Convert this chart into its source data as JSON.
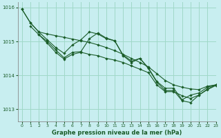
{
  "xlabel": "Graphe pression niveau de la mer (hPa)",
  "background_color": "#c8eef0",
  "grid_color": "#a0d8c8",
  "line_color": "#1a5c28",
  "xlim": [
    -0.5,
    23
  ],
  "ylim": [
    1012.65,
    1016.15
  ],
  "yticks": [
    1013,
    1014,
    1015,
    1016
  ],
  "xticks": [
    0,
    1,
    2,
    3,
    4,
    5,
    6,
    7,
    8,
    9,
    10,
    11,
    12,
    13,
    14,
    15,
    16,
    17,
    18,
    19,
    20,
    21,
    22,
    23
  ],
  "line1_x": [
    0,
    1,
    2,
    3,
    4,
    5,
    6,
    7,
    8,
    9,
    10,
    11,
    12,
    13,
    14,
    15,
    16,
    17,
    18,
    19,
    20,
    21,
    22,
    23
  ],
  "line1_y": [
    1015.95,
    1015.55,
    1015.28,
    1015.22,
    1015.17,
    1015.12,
    1015.07,
    1015.02,
    1014.97,
    1014.9,
    1014.82,
    1014.73,
    1014.62,
    1014.5,
    1014.38,
    1014.25,
    1014.05,
    1013.85,
    1013.72,
    1013.65,
    1013.6,
    1013.58,
    1013.68,
    1013.72
  ],
  "line2_x": [
    0,
    1,
    2,
    3,
    4,
    5,
    6,
    7,
    8,
    9,
    10,
    11,
    12,
    13,
    14,
    15,
    16,
    17,
    18,
    19,
    20,
    21,
    22,
    23
  ],
  "line2_y": [
    1015.95,
    1015.55,
    1015.28,
    1015.05,
    1014.82,
    1014.65,
    1014.9,
    1015.05,
    1015.28,
    1015.22,
    1015.08,
    1015.02,
    1014.6,
    1014.42,
    1014.5,
    1014.22,
    1013.82,
    1013.62,
    1013.62,
    1013.28,
    1013.42,
    1013.48,
    1013.65,
    1013.72
  ],
  "line3_x": [
    1,
    2,
    3,
    4,
    5,
    6,
    7,
    8,
    9,
    10,
    11,
    12,
    13,
    14,
    15,
    16,
    17,
    18,
    19,
    20,
    21,
    22,
    23
  ],
  "line3_y": [
    1015.45,
    1015.2,
    1014.95,
    1014.68,
    1014.48,
    1014.62,
    1014.68,
    1014.62,
    1014.58,
    1014.5,
    1014.45,
    1014.38,
    1014.28,
    1014.18,
    1014.08,
    1013.72,
    1013.52,
    1013.52,
    1013.4,
    1013.32,
    1013.42,
    1013.6,
    1013.72
  ],
  "line4_x": [
    2,
    3,
    4,
    5,
    6,
    7,
    8,
    9,
    10,
    11,
    12,
    13,
    14,
    15,
    16,
    17,
    18,
    19,
    20,
    21,
    22,
    23
  ],
  "line4_y": [
    1015.2,
    1015.0,
    1014.75,
    1014.52,
    1014.68,
    1014.7,
    1015.08,
    1015.25,
    1015.1,
    1015.02,
    1014.58,
    1014.38,
    1014.5,
    1014.2,
    1013.8,
    1013.55,
    1013.55,
    1013.25,
    1013.2,
    1013.42,
    1013.58,
    1013.7
  ]
}
